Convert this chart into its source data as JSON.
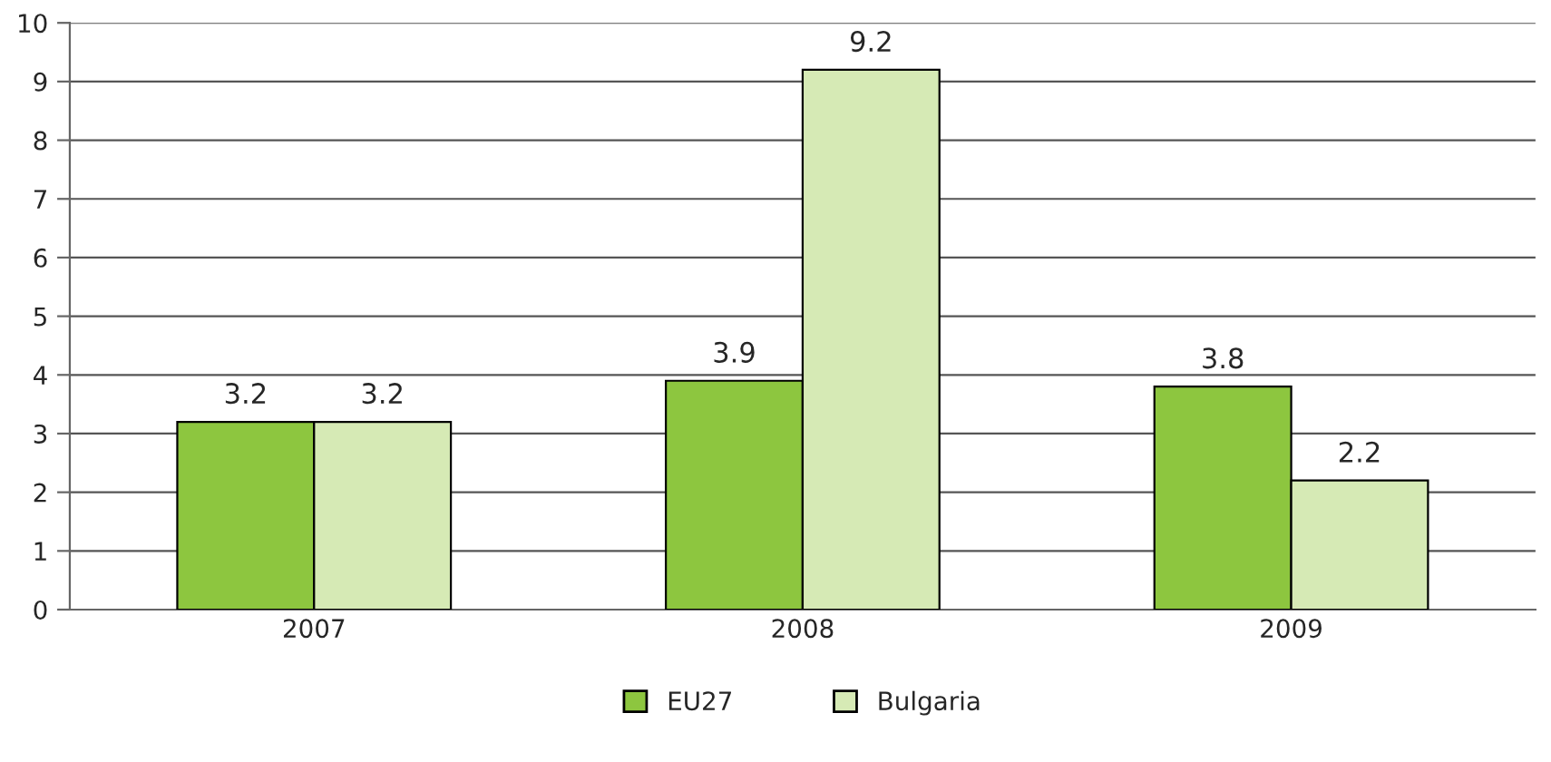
{
  "chart_data": {
    "type": "bar",
    "categories": [
      "2007",
      "2008",
      "2009"
    ],
    "series": [
      {
        "name": "EU27",
        "color": "#8dc63f",
        "values": [
          3.2,
          3.9,
          3.8
        ]
      },
      {
        "name": "Bulgaria",
        "color": "#d6eab5",
        "values": [
          3.2,
          9.2,
          2.2
        ]
      }
    ],
    "ylim": [
      0,
      10
    ],
    "yticks": [
      0,
      1,
      2,
      3,
      4,
      5,
      6,
      7,
      8,
      9,
      10
    ],
    "grid": "y",
    "legend": "bottom",
    "data_labels": true
  }
}
